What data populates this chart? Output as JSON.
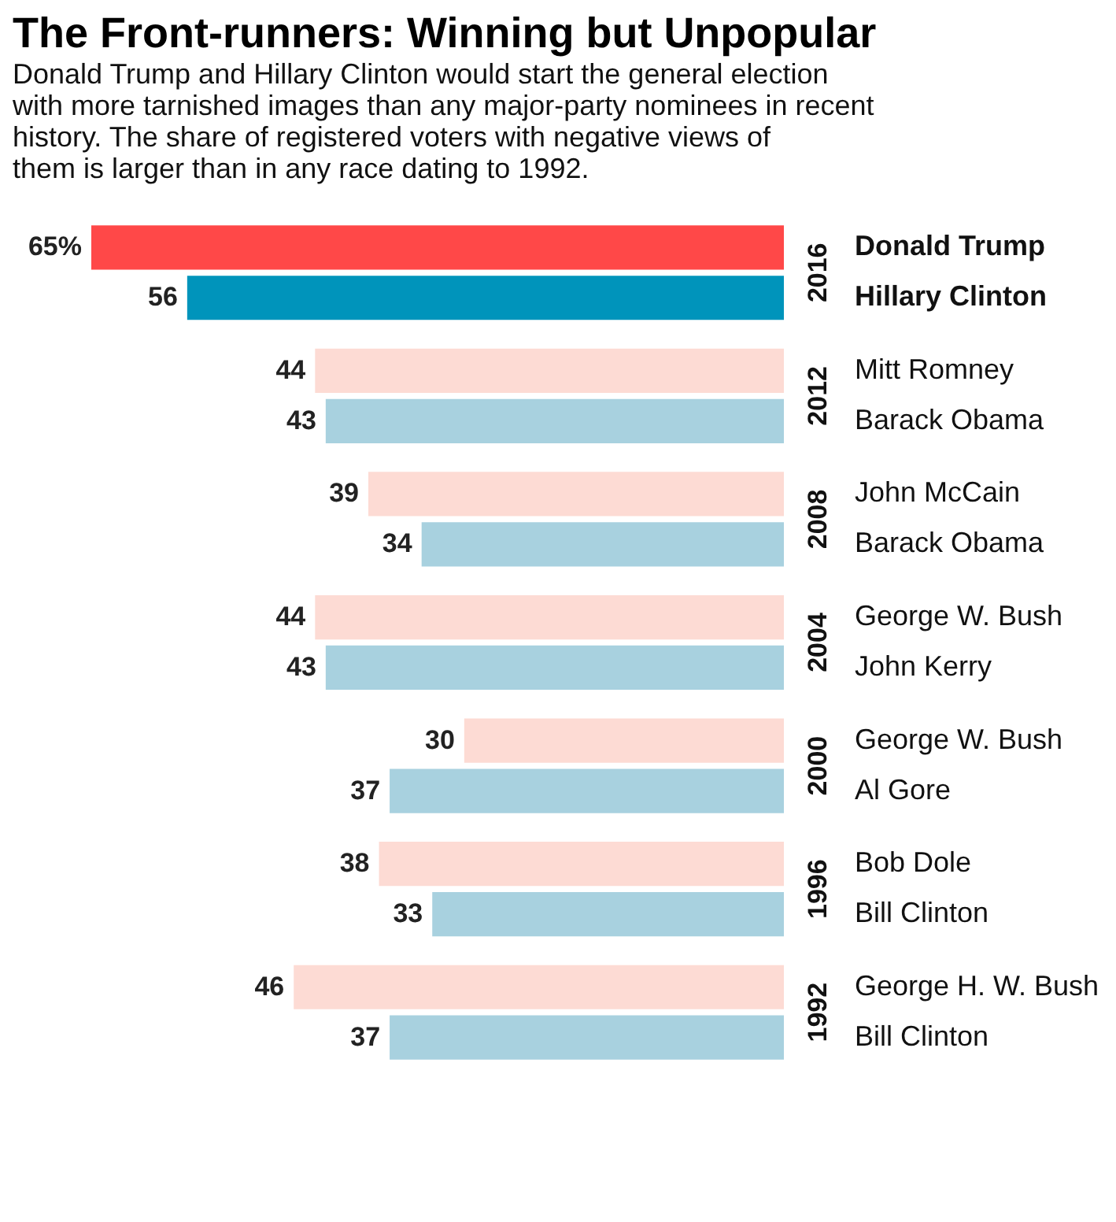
{
  "chart_data": {
    "type": "bar",
    "orientation": "horizontal",
    "title": "The Front-runners: Winning but Unpopular",
    "subtitle": "Donald Trump and Hillary Clinton would start the general election with more tarnished images than any major-party nominees in recent history. The share of registered voters with negative views of them is larger than in any race dating to 1992.",
    "categories": [
      "Donald Trump",
      "Hillary Clinton",
      "Mitt Romney",
      "Barack Obama",
      "John McCain",
      "Barack Obama",
      "George W. Bush",
      "John Kerry",
      "George W. Bush",
      "Al Gore",
      "Bob Dole",
      "Bill Clinton",
      "George H. W. Bush",
      "Bill Clinton"
    ],
    "values": [
      65,
      56,
      44,
      43,
      39,
      34,
      44,
      43,
      30,
      37,
      38,
      33,
      46,
      37
    ],
    "value_labels": [
      "65%",
      "56",
      "44",
      "43",
      "39",
      "34",
      "44",
      "43",
      "30",
      "37",
      "38",
      "33",
      "46",
      "37"
    ],
    "colors": [
      "#ff4848",
      "#0094bb",
      "#fddbd4",
      "#a8d1df",
      "#fddbd4",
      "#a8d1df",
      "#fddbd4",
      "#a8d1df",
      "#fddbd4",
      "#a8d1df",
      "#fddbd4",
      "#a8d1df",
      "#fddbd4",
      "#a8d1df"
    ],
    "annotations": [
      "2016",
      "2012",
      "2008",
      "2004",
      "2000",
      "1996",
      "1992"
    ]
  }
}
